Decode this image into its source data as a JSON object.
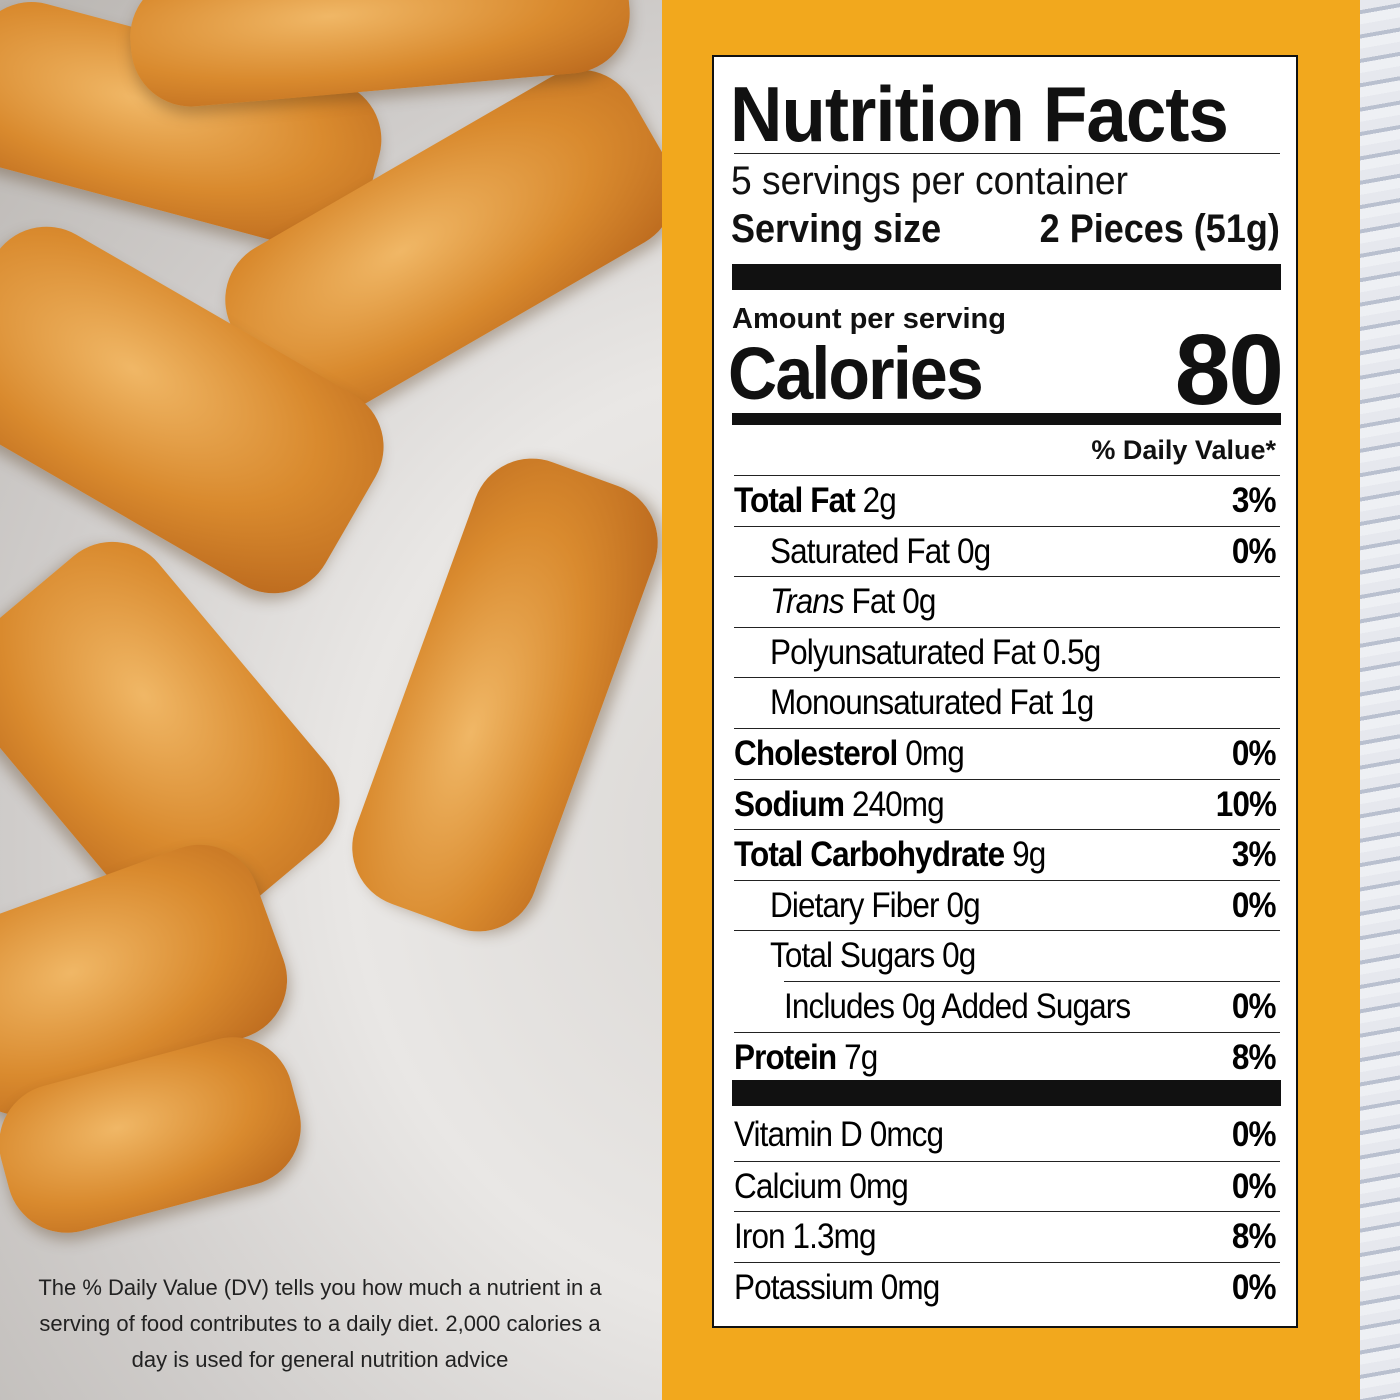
{
  "label": {
    "title": "Nutrition Facts",
    "servings_per_container": "5 servings per container",
    "serving_size_label": "Serving size",
    "serving_size_value": "2 Pieces (51g)",
    "amount_per_serving": "Amount per serving",
    "calories_label": "Calories",
    "calories_value": "80",
    "daily_value_header": "% Daily Value*",
    "nutrients": [
      {
        "bold": "Total Fat",
        "regular": " 2g",
        "dv": "3%",
        "indent": 0
      },
      {
        "bold": "",
        "regular": "Saturated Fat 0g",
        "dv": "0%",
        "indent": 1
      },
      {
        "italic": "Trans",
        "regular": " Fat 0g",
        "dv": "",
        "indent": 1
      },
      {
        "bold": "",
        "regular": "Polyunsaturated Fat 0.5g",
        "dv": "",
        "indent": 1
      },
      {
        "bold": "",
        "regular": "Monounsaturated Fat 1g",
        "dv": "",
        "indent": 1
      },
      {
        "bold": "Cholesterol",
        "regular": " 0mg",
        "dv": "0%",
        "indent": 0
      },
      {
        "bold": "Sodium",
        "regular": " 240mg",
        "dv": "10%",
        "indent": 0
      },
      {
        "bold": "Total Carbohydrate",
        "regular": " 9g",
        "dv": "3%",
        "indent": 0
      },
      {
        "bold": "",
        "regular": "Dietary Fiber 0g",
        "dv": "0%",
        "indent": 1
      },
      {
        "bold": "",
        "regular": "Total Sugars 0g",
        "dv": "",
        "indent": 1
      },
      {
        "bold": "",
        "regular": "Includes 0g Added Sugars",
        "dv": "0%",
        "indent": 2
      },
      {
        "bold": "Protein",
        "regular": " 7g",
        "dv": "8%",
        "indent": 0
      }
    ],
    "vitamins": [
      {
        "regular": "Vitamin D 0mcg",
        "dv": "0%"
      },
      {
        "regular": "Calcium 0mg",
        "dv": "0%"
      },
      {
        "regular": "Iron 1.3mg",
        "dv": "8%"
      },
      {
        "regular": "Potassium 0mg",
        "dv": "0%"
      }
    ]
  },
  "footnote": "The % Daily Value (DV) tells you how much a nutrient in a serving of food contributes to a daily diet. 2,000 calories a day is used for general nutrition advice",
  "colors": {
    "band": "#f2a81d",
    "label_bg": "#ffffff",
    "text": "#111111"
  }
}
